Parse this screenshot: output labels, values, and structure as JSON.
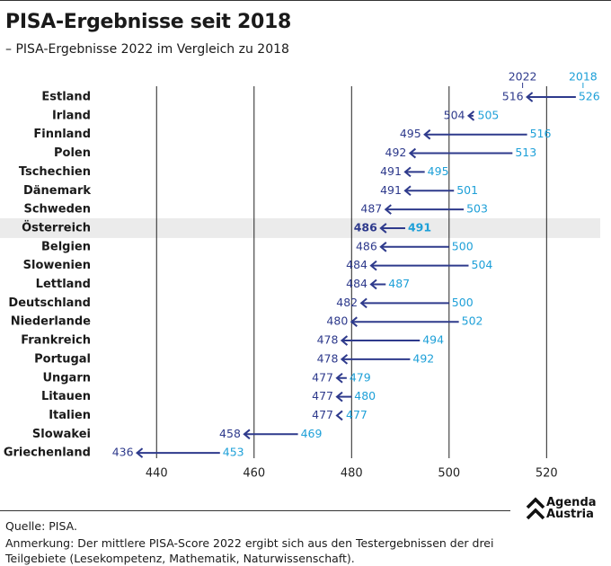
{
  "header": {
    "title": "PISA-Ergebnisse seit 2018",
    "subtitle": "– PISA-Ergebnisse 2022 im Vergleich zu 2018"
  },
  "footer": {
    "source": "Quelle: PISA.",
    "note_line1": "Anmerkung: Der mittlere PISA-Score 2022 ergibt sich aus den Testergebnissen der drei",
    "note_line2": "Teilgebiete (Lesekompetenz, Mathematik, Naturwissenschaft)."
  },
  "logo": {
    "line1": "Agenda",
    "line2": "Austria",
    "icon": "chevron-up-icon"
  },
  "colors": {
    "y2022": "#2e3a8c",
    "y2018": "#1ea0d8",
    "highlight_bg": "#ebebeb",
    "grid": "#222222"
  },
  "chart_data": {
    "type": "arrow-dumbbell",
    "series": [
      {
        "name": "2022",
        "key": "v2022"
      },
      {
        "name": "2018",
        "key": "v2018"
      }
    ],
    "xlim": [
      430,
      531
    ],
    "xticks": [
      440,
      460,
      480,
      500,
      520
    ],
    "highlight": "Österreich",
    "rows": [
      {
        "country": "Estland",
        "v2018": 526,
        "v2022": 516
      },
      {
        "country": "Irland",
        "v2018": 505,
        "v2022": 504
      },
      {
        "country": "Finnland",
        "v2018": 516,
        "v2022": 495
      },
      {
        "country": "Polen",
        "v2018": 513,
        "v2022": 492
      },
      {
        "country": "Tschechien",
        "v2018": 495,
        "v2022": 491
      },
      {
        "country": "Dänemark",
        "v2018": 501,
        "v2022": 491
      },
      {
        "country": "Schweden",
        "v2018": 503,
        "v2022": 487
      },
      {
        "country": "Österreich",
        "v2018": 491,
        "v2022": 486
      },
      {
        "country": "Belgien",
        "v2018": 500,
        "v2022": 486
      },
      {
        "country": "Slowenien",
        "v2018": 504,
        "v2022": 484
      },
      {
        "country": "Lettland",
        "v2018": 487,
        "v2022": 484
      },
      {
        "country": "Deutschland",
        "v2018": 500,
        "v2022": 482
      },
      {
        "country": "Niederlande",
        "v2018": 502,
        "v2022": 480
      },
      {
        "country": "Frankreich",
        "v2018": 494,
        "v2022": 478
      },
      {
        "country": "Portugal",
        "v2018": 492,
        "v2022": 478
      },
      {
        "country": "Ungarn",
        "v2018": 479,
        "v2022": 477
      },
      {
        "country": "Litauen",
        "v2018": 480,
        "v2022": 477
      },
      {
        "country": "Italien",
        "v2018": 477,
        "v2022": 477
      },
      {
        "country": "Slowakei",
        "v2018": 469,
        "v2022": 458
      },
      {
        "country": "Griechenland",
        "v2018": 453,
        "v2022": 436
      }
    ]
  }
}
